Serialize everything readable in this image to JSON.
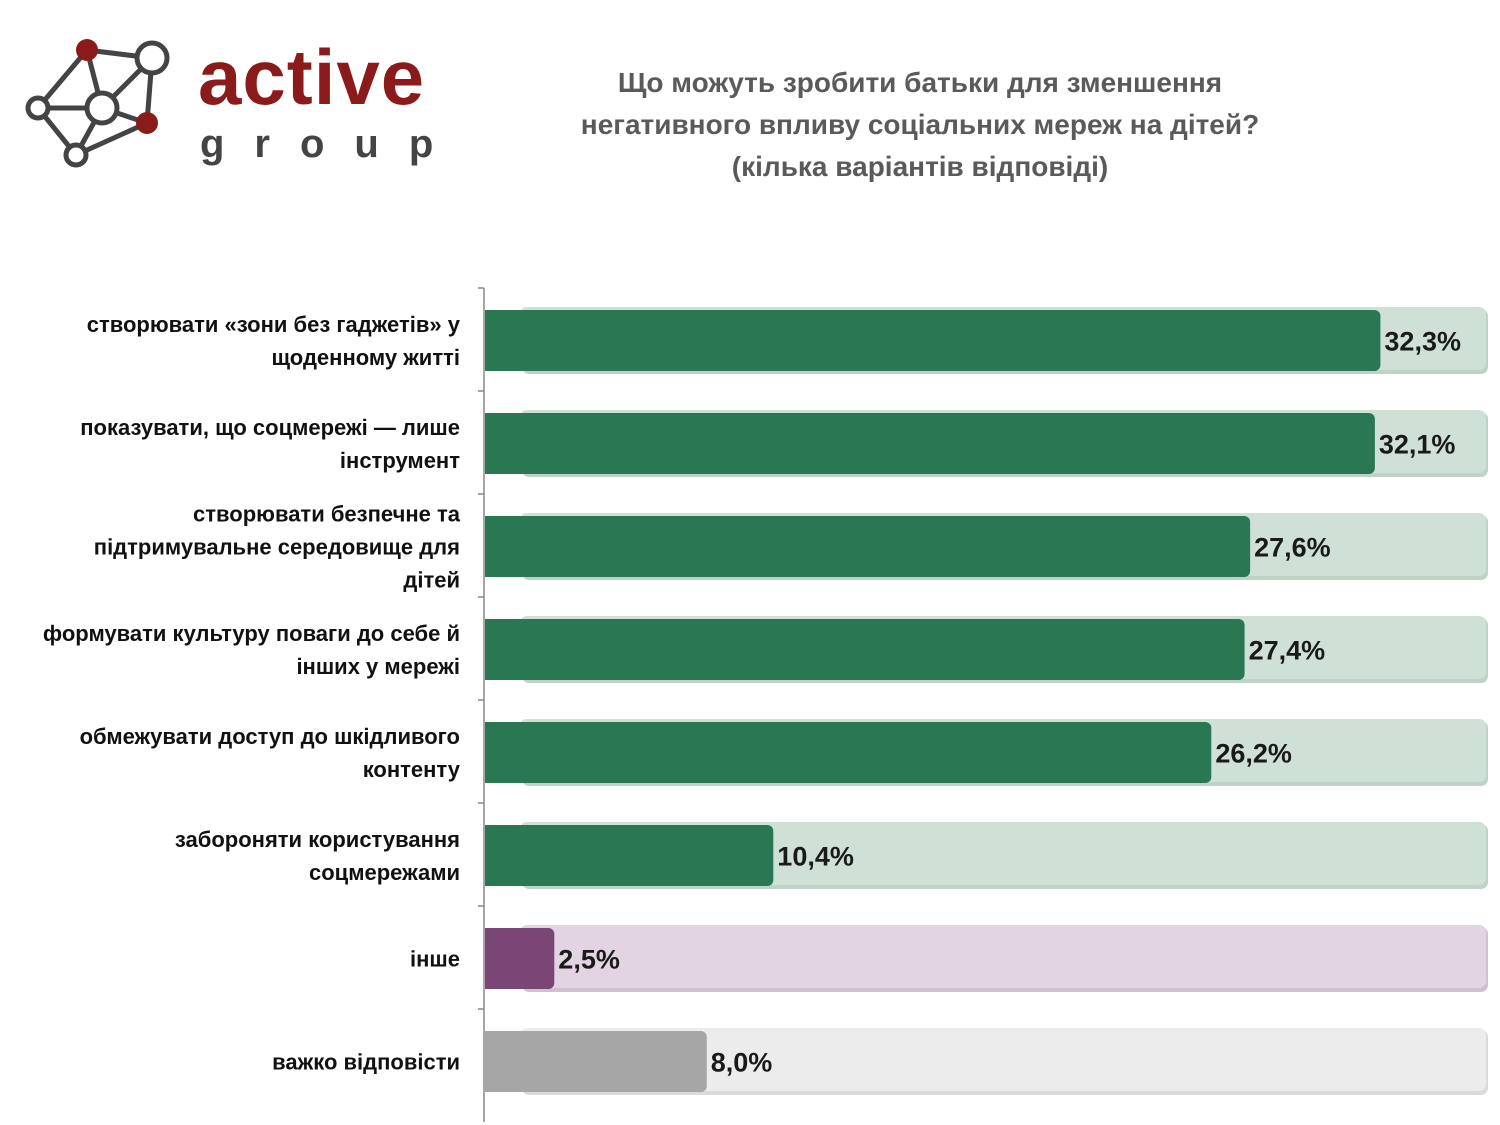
{
  "logo": {
    "word": "active",
    "sub": "group"
  },
  "chart_data": {
    "type": "bar",
    "orientation": "horizontal",
    "title_lines": [
      "Що можуть зробити батьки для зменшення",
      "негативного впливу соціальних мереж на дітей?",
      "(кілька варіантів відповіді)"
    ],
    "categories": [
      [
        "створювати «зони без гаджетів» у",
        "щоденному житті"
      ],
      [
        "показувати, що соцмережі — лише",
        "інструмент"
      ],
      [
        "створювати безпечне та",
        "підтримувальне середовище для",
        "дітей"
      ],
      [
        "формувати культуру поваги до себе й",
        "інших у мережі"
      ],
      [
        "обмежувати доступ до шкідливого",
        "контенту"
      ],
      [
        "забороняти користування",
        "соцмережами"
      ],
      [
        "інше"
      ],
      [
        "важко відповісти"
      ]
    ],
    "values": [
      32.3,
      32.1,
      27.6,
      27.4,
      26.2,
      10.4,
      2.5,
      8.0
    ],
    "value_labels": [
      "32,3%",
      "32,1%",
      "27,6%",
      "27,4%",
      "26,2%",
      "10,4%",
      "2,5%",
      "8,0%"
    ],
    "unit": "%",
    "xlim": [
      0,
      33.8
    ],
    "colors": [
      {
        "fill": "#2a7753",
        "track": "#cfe1d7",
        "border": "#bcd3c6"
      },
      {
        "fill": "#2a7753",
        "track": "#cfe1d7",
        "border": "#bcd3c6"
      },
      {
        "fill": "#2a7753",
        "track": "#cfe1d7",
        "border": "#bcd3c6"
      },
      {
        "fill": "#2a7753",
        "track": "#cfe1d7",
        "border": "#bcd3c6"
      },
      {
        "fill": "#2a7753",
        "track": "#cfe1d7",
        "border": "#bcd3c6"
      },
      {
        "fill": "#2a7753",
        "track": "#cfe1d7",
        "border": "#bcd3c6"
      },
      {
        "fill": "#7a4676",
        "track": "#e2d4e2",
        "border": "#d0c1d0"
      },
      {
        "fill": "#a6a6a6",
        "track": "#ececec",
        "border": "#dadada"
      }
    ]
  }
}
